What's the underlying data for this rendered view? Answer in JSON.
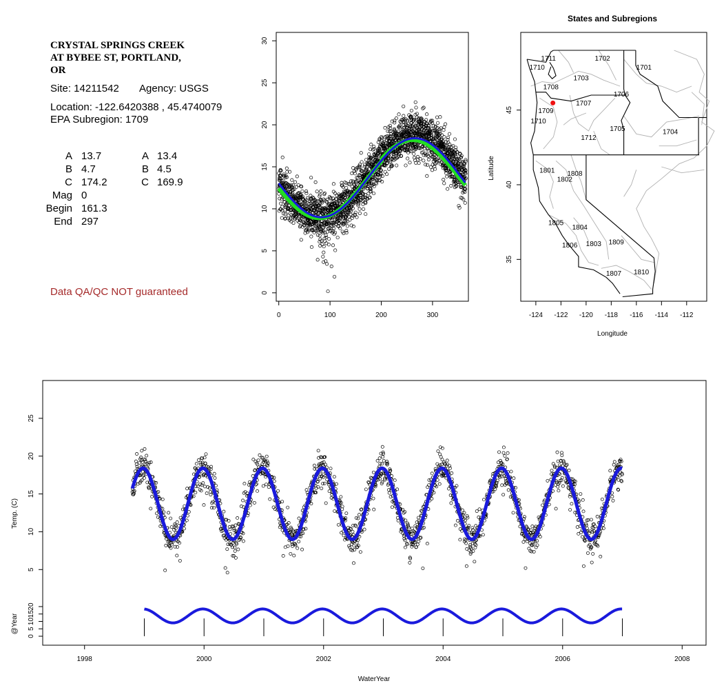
{
  "info": {
    "site_title": [
      "CRYSTAL SPRINGS CREEK",
      "AT BYBEE ST, PORTLAND,",
      "OR"
    ],
    "site_line": "Site: 14211542",
    "agency_line": "Agency: USGS",
    "location_line": "Location: -122.6420388 , 45.4740079",
    "subregion_line": "EPA Subregion: 1709",
    "params": [
      {
        "label": "A",
        "v1": "13.7",
        "v2label": "A",
        "v2": "13.4"
      },
      {
        "label": "B",
        "v1": "4.7",
        "v2label": "B",
        "v2": "4.5"
      },
      {
        "label": "C",
        "v1": "174.2",
        "v2label": "C",
        "v2": "169.9"
      },
      {
        "label": "Mag",
        "v1": "0"
      },
      {
        "label": "Begin",
        "v1": "161.3"
      },
      {
        "label": "End",
        "v1": "297"
      }
    ],
    "disclaimer": "Data QA/QC NOT guaranteed",
    "disclaimer_color": "#a52a2a"
  },
  "chart_data": [
    {
      "type": "scatter",
      "id": "doy",
      "title": "",
      "xlabel": "",
      "ylabel": "",
      "xlim": [
        -5,
        370
      ],
      "ylim": [
        -1,
        31
      ],
      "xticks": [
        0,
        100,
        200,
        300
      ],
      "yticks": [
        0,
        5,
        10,
        15,
        20,
        25,
        30
      ],
      "fit_green": {
        "mean": 13.4,
        "amp": 4.5,
        "phase_day": 169.9,
        "color": "#22dd22"
      },
      "fit_blue": {
        "mean": 13.7,
        "amp": 4.7,
        "phase_day": 174.2,
        "color": "#1a1adc"
      },
      "points_note_spread": 1.3
    },
    {
      "type": "map",
      "id": "map",
      "title": "States and Subregions",
      "xlabel": "Longitude",
      "ylabel": "Latitude",
      "xlim": [
        -125.2,
        -110.4
      ],
      "ylim": [
        32.2,
        50.2
      ],
      "xticks": [
        -124,
        -122,
        -120,
        -118,
        -116,
        -114,
        -112
      ],
      "yticks": [
        35,
        40,
        45
      ],
      "site": {
        "lon": -122.642,
        "lat": 45.474,
        "color": "#ee1111"
      },
      "region_labels": [
        {
          "text": "1711",
          "lon": -123.0,
          "lat": 48.3
        },
        {
          "text": "1702",
          "lon": -118.7,
          "lat": 48.3
        },
        {
          "text": "1701",
          "lon": -115.4,
          "lat": 47.7
        },
        {
          "text": "1710",
          "lon": -123.9,
          "lat": 47.7
        },
        {
          "text": "1703",
          "lon": -120.4,
          "lat": 47.0
        },
        {
          "text": "1708",
          "lon": -122.8,
          "lat": 46.4
        },
        {
          "text": "1706",
          "lon": -117.2,
          "lat": 45.9
        },
        {
          "text": "1707",
          "lon": -120.2,
          "lat": 45.3
        },
        {
          "text": "1709",
          "lon": -123.2,
          "lat": 44.8
        },
        {
          "text": "1710",
          "lon": -123.8,
          "lat": 44.1
        },
        {
          "text": "1705",
          "lon": -117.5,
          "lat": 43.6
        },
        {
          "text": "1704",
          "lon": -113.3,
          "lat": 43.4
        },
        {
          "text": "1712",
          "lon": -119.8,
          "lat": 43.0
        },
        {
          "text": "1801",
          "lon": -123.1,
          "lat": 40.8
        },
        {
          "text": "1808",
          "lon": -120.9,
          "lat": 40.6
        },
        {
          "text": "1802",
          "lon": -121.7,
          "lat": 40.2
        },
        {
          "text": "1805",
          "lon": -122.4,
          "lat": 37.3
        },
        {
          "text": "1804",
          "lon": -120.5,
          "lat": 37.0
        },
        {
          "text": "1806",
          "lon": -121.3,
          "lat": 35.8
        },
        {
          "text": "1803",
          "lon": -119.4,
          "lat": 35.9
        },
        {
          "text": "1809",
          "lon": -117.6,
          "lat": 36.0
        },
        {
          "text": "1807",
          "lon": -117.8,
          "lat": 33.9
        },
        {
          "text": "1810",
          "lon": -115.6,
          "lat": 34.0
        }
      ]
    },
    {
      "type": "line",
      "id": "timeseries",
      "title": "",
      "xlabel": "WaterYear",
      "ylabel": "Temp. (C)",
      "ylabel2": "@Year",
      "xlim": [
        1997.3,
        2008.4
      ],
      "ylim": [
        -5,
        30
      ],
      "xticks": [
        1998,
        2000,
        2002,
        2004,
        2006,
        2008
      ],
      "yticks": [
        5,
        10,
        15,
        20,
        25
      ],
      "yticks2": [
        0,
        5,
        10,
        15,
        20
      ],
      "data_range": [
        1998.8,
        2007.0
      ],
      "fit": {
        "mean": 13.7,
        "amp": 4.7,
        "phase_day": 174.2,
        "color": "#1a1adc"
      },
      "year_lines": [
        1999,
        2000,
        2001,
        2002,
        2003,
        2004,
        2005,
        2006,
        2007
      ]
    }
  ]
}
